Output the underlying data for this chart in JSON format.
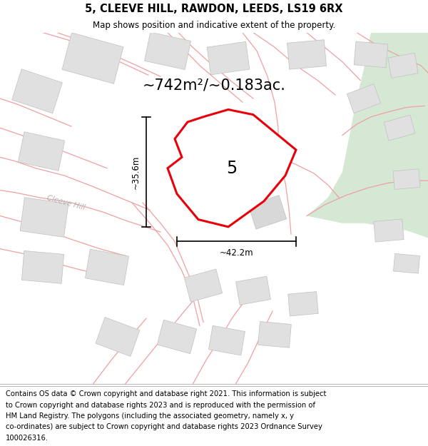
{
  "title_line1": "5, CLEEVE HILL, RAWDON, LEEDS, LS19 6RX",
  "title_line2": "Map shows position and indicative extent of the property.",
  "area_label": "~742m²/~0.183ac.",
  "width_label": "~42.2m",
  "height_label": "~35.6m",
  "property_number": "5",
  "bg_color": "#f7f7f7",
  "map_bg": "#ffffff",
  "property_fill": "#ffffff",
  "property_edge": "#e8000a",
  "road_line_color": "#f0a0a0",
  "building_fill": "#e0e0e0",
  "building_edge": "#c8c8c8",
  "green_fill": "#d4e8d4",
  "text_color": "#000000",
  "cleeve_hill_color": "#b0b0b0",
  "title_fontsize": 10.5,
  "subtitle_fontsize": 8.5,
  "area_fontsize": 15,
  "label_fontsize": 8.5,
  "property_num_fontsize": 17,
  "footer_fontsize": 7.2,
  "footer_lines": [
    "Contains OS data © Crown copyright and database right 2021. This information is subject",
    "to Crown copyright and database rights 2023 and is reproduced with the permission of",
    "HM Land Registry. The polygons (including the associated geometry, namely x, y",
    "co-ordinates) are subject to Crown copyright and database rights 2023 Ordnance Survey",
    "100026316."
  ]
}
